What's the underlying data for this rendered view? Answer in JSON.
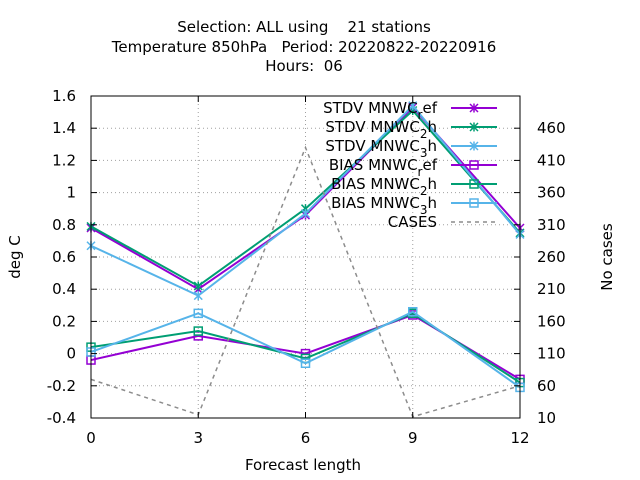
{
  "chart_data": {
    "type": "line",
    "title_lines": [
      "Selection: ALL using    21 stations",
      "Temperature 850hPa   Period: 20220822-20220916",
      "Hours:  06"
    ],
    "xlabel": "Forecast length",
    "ylabel": "deg C",
    "y2label": "No cases",
    "x": [
      0,
      3,
      6,
      9,
      12
    ],
    "xlim": [
      0,
      12
    ],
    "ylim": [
      -0.4,
      1.6
    ],
    "y2lim": [
      10,
      510
    ],
    "x_ticks": [
      "0",
      "3",
      "6",
      "9",
      "12"
    ],
    "y_ticks": [
      "-0.4",
      "-0.2",
      "0",
      "0.2",
      "0.4",
      "0.6",
      "0.8",
      "1",
      "1.2",
      "1.4",
      "1.6"
    ],
    "y2_ticks": [
      "10",
      "60",
      "110",
      "160",
      "210",
      "260",
      "310",
      "360",
      "410",
      "460"
    ],
    "grid": true,
    "legend_position": "top-right",
    "series": [
      {
        "legend_main": "STDV MNWC",
        "legend_sub": "r",
        "legend_tail": "ef",
        "color": "#9400d3",
        "marker": "x",
        "axis": "y",
        "values": [
          0.78,
          0.4,
          0.86,
          1.53,
          0.78
        ]
      },
      {
        "legend_main": "STDV MNWC",
        "legend_sub": "2",
        "legend_tail": "h",
        "color": "#009e73",
        "marker": "x",
        "axis": "y",
        "values": [
          0.79,
          0.42,
          0.9,
          1.51,
          0.75
        ]
      },
      {
        "legend_main": "STDV MNWC",
        "legend_sub": "3",
        "legend_tail": "h",
        "color": "#56b4e9",
        "marker": "x",
        "axis": "y",
        "values": [
          0.67,
          0.36,
          0.87,
          1.54,
          0.74
        ]
      },
      {
        "legend_main": "BIAS MNWC",
        "legend_sub": "r",
        "legend_tail": "ef",
        "color": "#9400d3",
        "marker": "square",
        "axis": "y",
        "values": [
          -0.04,
          0.11,
          0.0,
          0.24,
          -0.16
        ]
      },
      {
        "legend_main": "BIAS MNWC",
        "legend_sub": "2",
        "legend_tail": "h",
        "color": "#009e73",
        "marker": "square",
        "axis": "y",
        "values": [
          0.04,
          0.14,
          -0.03,
          0.25,
          -0.18
        ]
      },
      {
        "legend_main": "BIAS MNWC",
        "legend_sub": "3",
        "legend_tail": "h",
        "color": "#56b4e9",
        "marker": "square",
        "axis": "y",
        "values": [
          0.01,
          0.25,
          -0.06,
          0.26,
          -0.21
        ]
      },
      {
        "legend_main": "CASES",
        "legend_sub": "",
        "legend_tail": "",
        "color": "#8c8c8c",
        "marker": "none",
        "dashed": true,
        "axis": "y2",
        "values": [
          70,
          15,
          430,
          12,
          60
        ]
      }
    ]
  }
}
